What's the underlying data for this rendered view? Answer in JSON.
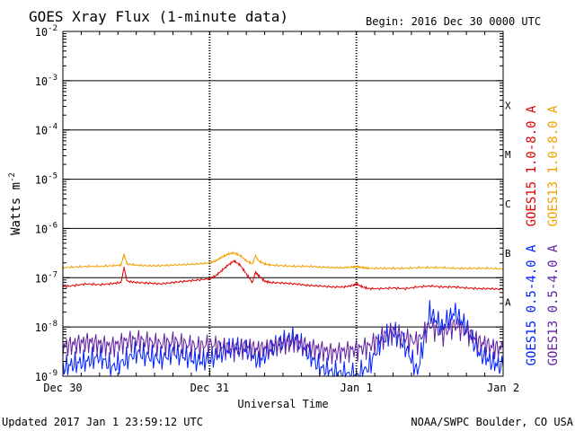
{
  "chart_data": {
    "type": "line",
    "title": "GOES Xray Flux (1-minute data)",
    "begin_label": "Begin:  2016 Dec 30 0000 UTC",
    "xlabel": "Universal Time",
    "ylabel": "Watts m",
    "ylabel_exponent": "-2",
    "x_unit": "hours since 2016 Dec 30 0000 UTC",
    "xlim": [
      0,
      72
    ],
    "x_ticks": [
      {
        "value": 0,
        "label": "Dec 30"
      },
      {
        "value": 24,
        "label": "Dec 31"
      },
      {
        "value": 48,
        "label": "Jan 1"
      },
      {
        "value": 72,
        "label": "Jan 2"
      }
    ],
    "yscale": "log",
    "ylim": [
      1e-09,
      0.01
    ],
    "y_ticks": [
      {
        "value": 1e-09,
        "exp": -9
      },
      {
        "value": 1e-08,
        "exp": -8
      },
      {
        "value": 1e-07,
        "exp": -7
      },
      {
        "value": 1e-06,
        "exp": -6
      },
      {
        "value": 1e-05,
        "exp": -5
      },
      {
        "value": 0.0001,
        "exp": -4
      },
      {
        "value": 0.001,
        "exp": -3
      },
      {
        "value": 0.01,
        "exp": -2
      }
    ],
    "y_tick_base": "10",
    "flare_classes": [
      {
        "label": "A",
        "value": 1e-08
      },
      {
        "label": "B",
        "value": 1e-07
      },
      {
        "label": "C",
        "value": 1e-06
      },
      {
        "label": "M",
        "value": 1e-05
      },
      {
        "label": "X",
        "value": 0.0001
      }
    ],
    "series": [
      {
        "name": "GOES15 1.0-8.0 A",
        "color": "#e00000",
        "x": [
          0,
          2,
          4,
          6,
          8,
          9.5,
          10,
          10.5,
          12,
          14,
          16,
          18,
          20,
          22,
          24,
          25,
          26,
          27,
          28,
          29,
          30,
          31,
          31.5,
          32,
          33,
          34,
          36,
          38,
          40,
          42,
          44,
          46,
          47.5,
          48,
          49,
          50,
          52,
          54,
          56,
          58,
          60,
          62,
          64,
          66,
          68,
          70,
          72
        ],
        "y": [
          6.5e-08,
          7e-08,
          7.5e-08,
          7.2e-08,
          7.6e-08,
          8e-08,
          1.6e-07,
          8.5e-08,
          8e-08,
          7.8e-08,
          7.5e-08,
          8e-08,
          8.5e-08,
          9e-08,
          9.5e-08,
          1.1e-07,
          1.4e-07,
          1.8e-07,
          2.2e-07,
          1.8e-07,
          1.2e-07,
          8e-08,
          1.3e-07,
          1.1e-07,
          8.5e-08,
          8e-08,
          7.8e-08,
          7.5e-08,
          7e-08,
          6.8e-08,
          6.5e-08,
          6.5e-08,
          7e-08,
          7.5e-08,
          6.5e-08,
          6e-08,
          6e-08,
          6.2e-08,
          6e-08,
          6.5e-08,
          6.8e-08,
          6.5e-08,
          6.5e-08,
          6.2e-08,
          6e-08,
          6e-08,
          5.8e-08
        ]
      },
      {
        "name": "GOES13 1.0-8.0 A",
        "color": "#f0a000",
        "x": [
          0,
          2,
          4,
          6,
          8,
          9.5,
          10,
          10.5,
          12,
          14,
          16,
          18,
          20,
          22,
          24,
          25,
          26,
          27,
          28,
          29,
          30,
          31,
          31.5,
          32,
          33,
          34,
          36,
          38,
          40,
          42,
          44,
          46,
          47.5,
          48,
          49,
          50,
          52,
          54,
          56,
          58,
          60,
          62,
          64,
          66,
          68,
          70,
          72
        ],
        "y": [
          1.6e-07,
          1.65e-07,
          1.7e-07,
          1.7e-07,
          1.75e-07,
          1.8e-07,
          3e-07,
          1.9e-07,
          1.8e-07,
          1.75e-07,
          1.75e-07,
          1.8e-07,
          1.85e-07,
          1.9e-07,
          2e-07,
          2.2e-07,
          2.6e-07,
          3e-07,
          3.2e-07,
          2.8e-07,
          2.2e-07,
          1.9e-07,
          2.8e-07,
          2.2e-07,
          1.9e-07,
          1.8e-07,
          1.75e-07,
          1.7e-07,
          1.7e-07,
          1.65e-07,
          1.6e-07,
          1.6e-07,
          1.65e-07,
          1.7e-07,
          1.6e-07,
          1.55e-07,
          1.55e-07,
          1.55e-07,
          1.55e-07,
          1.6e-07,
          1.6e-07,
          1.6e-07,
          1.55e-07,
          1.55e-07,
          1.55e-07,
          1.55e-07,
          1.5e-07
        ]
      },
      {
        "name": "GOES15 0.5-4.0 A",
        "color": "#0020ff",
        "x": [
          0,
          2,
          4,
          6,
          8,
          10,
          12,
          14,
          16,
          18,
          20,
          22,
          24,
          26,
          28,
          30,
          32,
          34,
          36,
          38,
          40,
          42,
          44,
          46,
          48,
          50,
          52,
          54,
          56,
          58,
          60,
          62,
          64,
          66,
          68,
          70,
          72
        ],
        "y": [
          1.5e-09,
          1.8e-09,
          2e-09,
          2.5e-09,
          1.5e-09,
          2e-09,
          3e-09,
          2.5e-09,
          2.2e-09,
          3e-09,
          2.5e-09,
          2e-09,
          2.2e-09,
          3e-09,
          4e-09,
          3.5e-09,
          2e-09,
          3.5e-09,
          5e-09,
          6e-09,
          3e-09,
          1.5e-09,
          1.2e-09,
          1.1e-09,
          1e-09,
          1.5e-09,
          5e-09,
          8e-09,
          4e-09,
          1.2e-09,
          2e-08,
          1e-08,
          2e-08,
          1e-08,
          3e-09,
          2e-09,
          1.5e-09
        ]
      },
      {
        "name": "GOES13 0.5-4.0 A",
        "color": "#6020a0",
        "x": [
          0,
          2,
          4,
          6,
          8,
          10,
          12,
          14,
          16,
          18,
          20,
          22,
          24,
          26,
          28,
          30,
          32,
          34,
          36,
          38,
          40,
          42,
          44,
          46,
          48,
          50,
          52,
          54,
          56,
          58,
          60,
          62,
          64,
          66,
          68,
          70,
          72
        ],
        "y": [
          4e-09,
          4.5e-09,
          5e-09,
          4.5e-09,
          4e-09,
          5e-09,
          5.5e-09,
          5e-09,
          4.5e-09,
          5e-09,
          4.5e-09,
          4e-09,
          4.5e-09,
          4e-09,
          3.5e-09,
          4e-09,
          3.5e-09,
          4e-09,
          4.5e-09,
          5e-09,
          4e-09,
          3.5e-09,
          3e-09,
          3.2e-09,
          3.5e-09,
          4e-09,
          6e-09,
          8e-09,
          6e-09,
          5e-09,
          1.1e-08,
          7e-09,
          1.1e-08,
          8e-09,
          5e-09,
          4e-09,
          3.5e-09
        ]
      }
    ],
    "footer_left": "Updated 2017 Jan  1 23:59:12 UTC",
    "footer_right": "NOAA/SWPC Boulder, CO USA"
  }
}
